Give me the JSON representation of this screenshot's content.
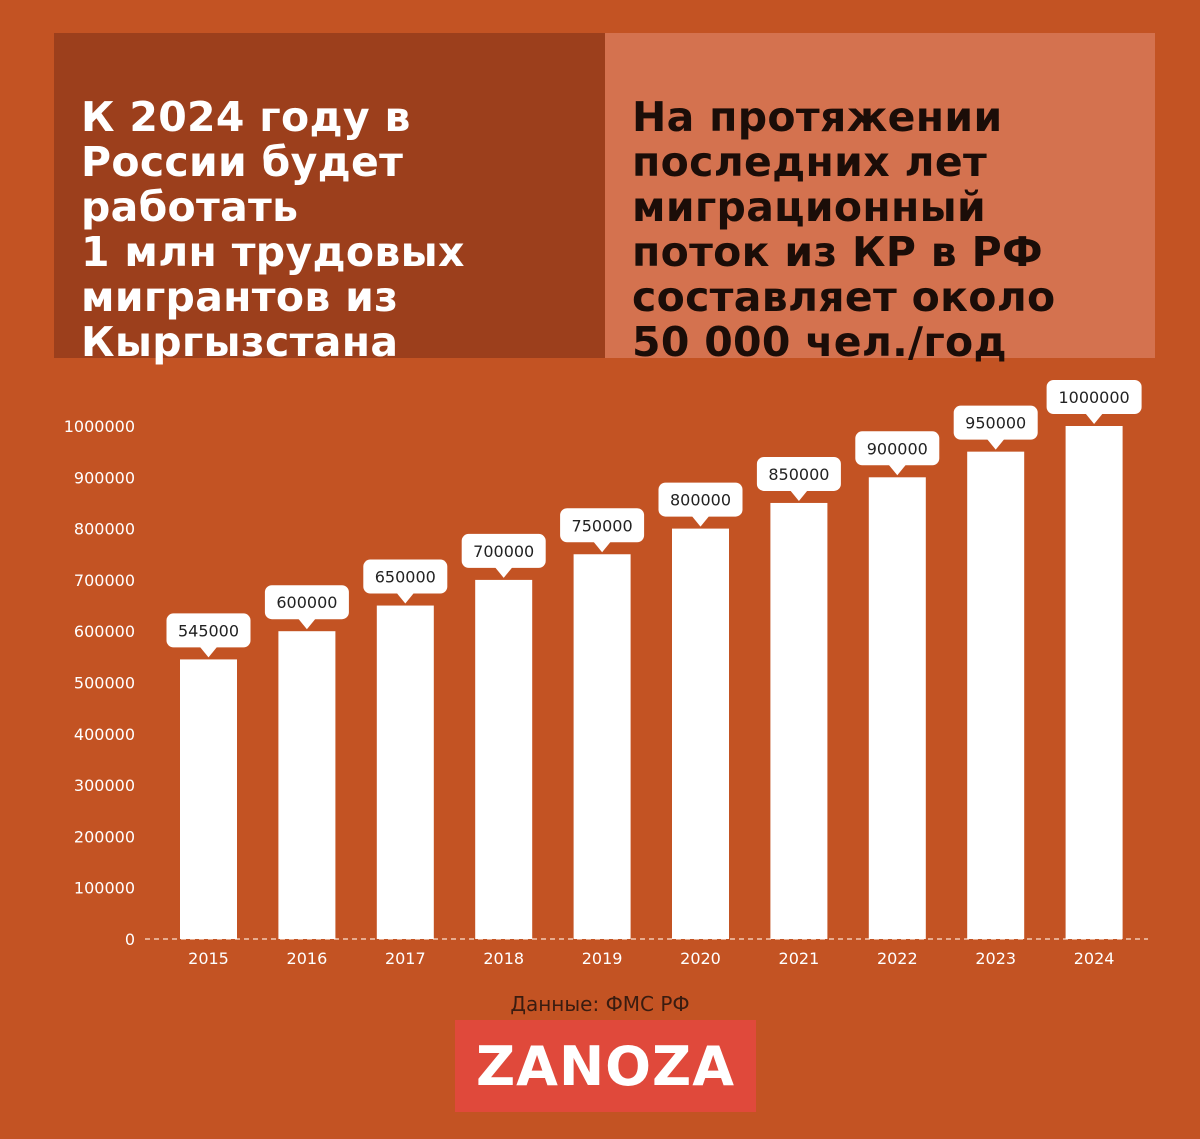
{
  "colors": {
    "background": "#c35323",
    "panel_left": "#9c3f1c",
    "panel_right": "#d4724f",
    "bar": "#ffffff",
    "logo_bg": "#e0493b"
  },
  "header": {
    "left_text": "К 2024 году в\nРоссии будет\nработать\n1 млн трудовых\nмигрантов из\nКыргызстана",
    "right_text": "На протяжении\nпоследних лет\nмиграционный\nпоток из КР в РФ\nсоставляет около\n50 000 чел./год"
  },
  "chart_data": {
    "type": "bar",
    "categories": [
      "2015",
      "2016",
      "2017",
      "2018",
      "2019",
      "2020",
      "2021",
      "2022",
      "2023",
      "2024"
    ],
    "values": [
      545000,
      600000,
      650000,
      700000,
      750000,
      800000,
      850000,
      900000,
      950000,
      1000000
    ],
    "data_labels": [
      "545000",
      "600000",
      "650000",
      "700000",
      "750000",
      "800000",
      "850000",
      "900000",
      "950000",
      "1000000"
    ],
    "y_ticks": [
      "0",
      "100000",
      "200000",
      "300000",
      "400000",
      "500000",
      "600000",
      "700000",
      "800000",
      "900000",
      "1000000"
    ],
    "ylim": [
      0,
      1000000
    ],
    "title": "",
    "xlabel": "",
    "ylabel": "",
    "grid": false
  },
  "footer": {
    "source": "Данные: ФМС РФ",
    "logo": "ZANOZA"
  }
}
